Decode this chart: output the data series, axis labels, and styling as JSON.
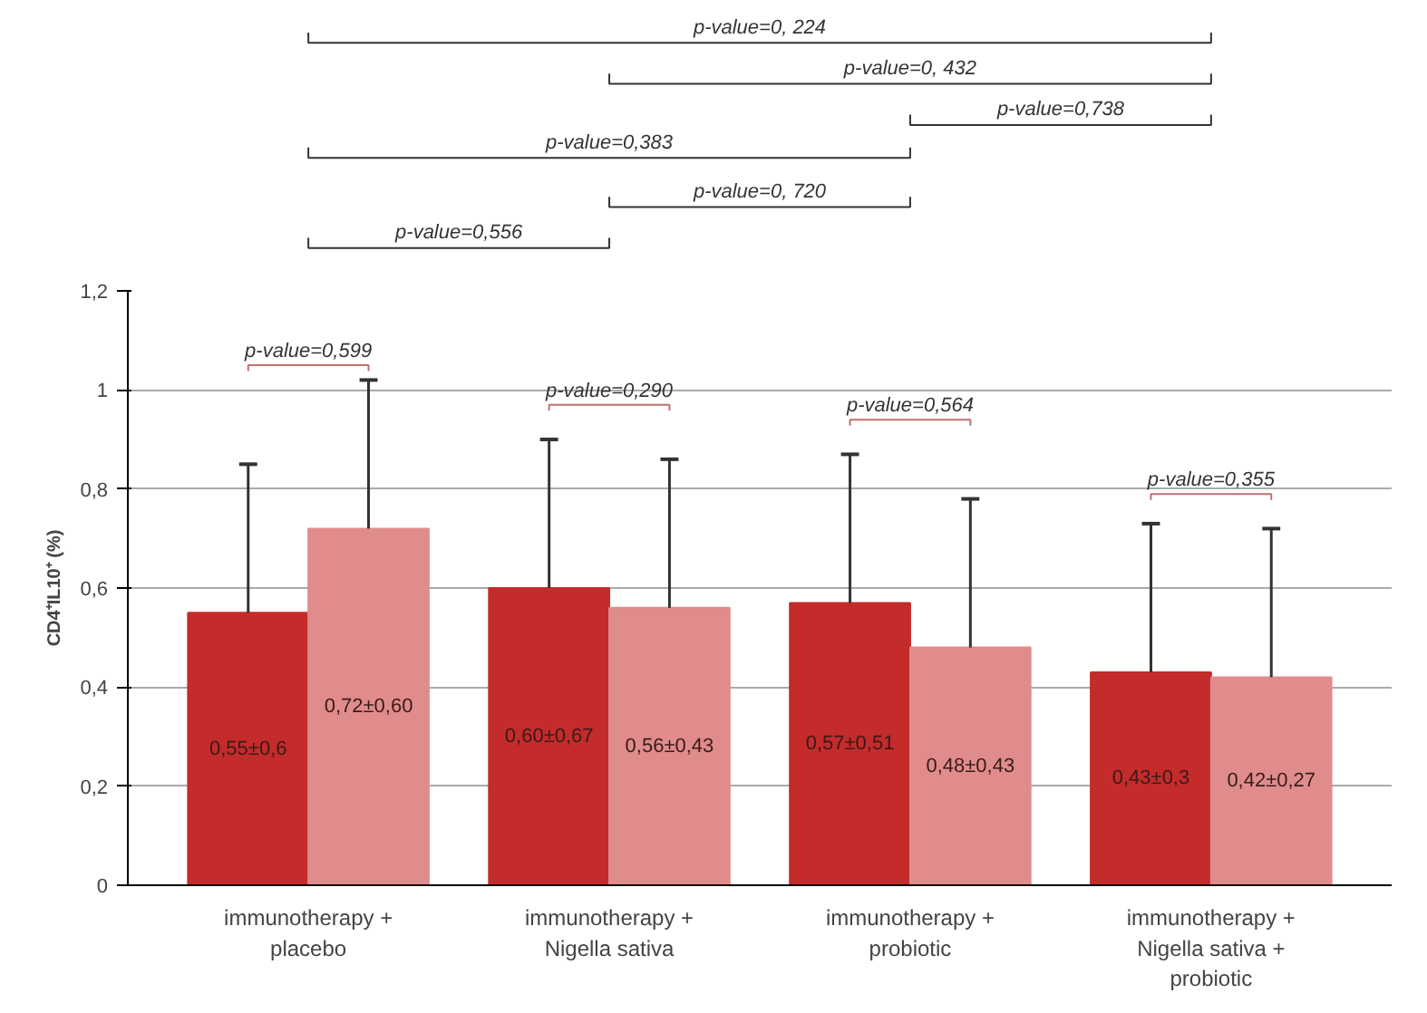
{
  "chart_data": {
    "type": "bar",
    "ylabel": "CD4⁺IL10⁺ (%)",
    "categories": [
      "immunotherapy +\nplacebo",
      "immunotherapy +\nNigella sativa",
      "immunotherapy +\nprobiotic",
      "immunotherapy +\nNigella sativa +\nprobiotic"
    ],
    "series": [
      {
        "color": "#c42b2b",
        "values": [
          0.55,
          0.6,
          0.57,
          0.43
        ],
        "errors": [
          [
            0.55,
            0.85
          ],
          [
            0.6,
            0.9
          ],
          [
            0.57,
            0.87
          ],
          [
            0.43,
            0.73
          ]
        ],
        "value_labels": [
          "0,55±0,6",
          "0,60±0,67",
          "0,57±0,51",
          "0,43±0,3"
        ]
      },
      {
        "color": "#e08c8c",
        "values": [
          0.72,
          0.56,
          0.48,
          0.42
        ],
        "errors": [
          [
            0.72,
            1.02
          ],
          [
            0.56,
            0.86
          ],
          [
            0.48,
            0.78
          ],
          [
            0.42,
            0.72
          ]
        ],
        "value_labels": [
          "0,72±0,60",
          "0,56±0,43",
          "0,48±0,43",
          "0,42±0,27"
        ]
      }
    ],
    "ylim": [
      0,
      1.2
    ],
    "yticks": [
      0,
      {
        "value": 0.2,
        "label": "0,2"
      },
      {
        "value": 0.4,
        "label": "0,4"
      },
      {
        "value": 0.6,
        "label": "0,6"
      },
      {
        "value": 0.8,
        "label": "0,8"
      },
      1,
      {
        "value": 1.2,
        "label": "1,2"
      }
    ],
    "grid": "y",
    "annotations": [
      "p-value=0, 224",
      "p-value=0, 432",
      "p-value=0,738",
      "p-value=0,383",
      "p-value=0, 720",
      "p-value=0,556",
      "p-value=0,599",
      "p-value=0,290",
      "p-value=0,564",
      "p-value=0,355"
    ]
  }
}
